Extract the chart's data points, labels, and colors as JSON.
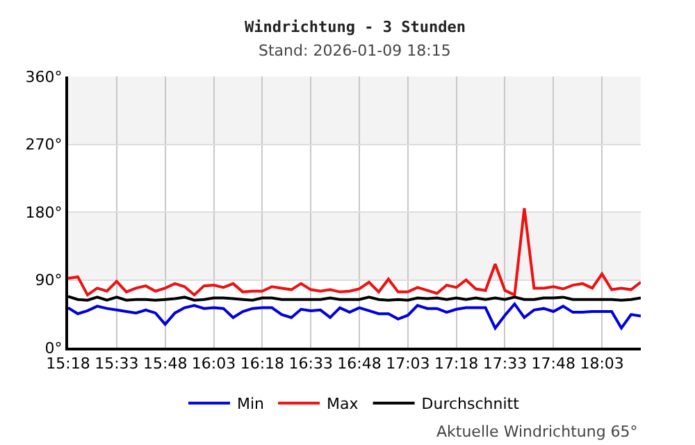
{
  "chart_data": {
    "type": "line",
    "title": "Windrichtung - 3 Stunden",
    "subtitle": "Stand: 2026-01-09 18:15",
    "x": [
      15.3,
      15.35,
      15.4,
      15.45,
      15.5,
      15.55,
      15.6,
      15.65,
      15.7,
      15.75,
      15.8,
      15.85,
      15.9,
      15.95,
      16.0,
      16.05,
      16.1,
      16.15,
      16.2,
      16.25,
      16.3,
      16.35,
      16.4,
      16.45,
      16.5,
      16.55,
      16.6,
      16.65,
      16.7,
      16.75,
      16.8,
      16.85,
      16.9,
      16.95,
      17.0,
      17.05,
      17.1,
      17.15,
      17.2,
      17.25,
      17.3,
      17.35,
      17.4,
      17.45,
      17.5,
      17.55,
      17.6,
      17.65,
      17.7,
      17.75,
      17.8,
      17.85,
      17.9,
      17.95,
      18.0,
      18.05,
      18.1,
      18.15,
      18.2,
      18.25
    ],
    "series": [
      {
        "name": "Min",
        "color": "#0000dd",
        "values": [
          53,
          45,
          49,
          55,
          52,
          50,
          48,
          46,
          50,
          46,
          31,
          46,
          53,
          56,
          52,
          53,
          52,
          40,
          48,
          52,
          53,
          53,
          44,
          40,
          51,
          49,
          50,
          40,
          53,
          47,
          53,
          49,
          45,
          45,
          38,
          43,
          56,
          52,
          52,
          47,
          51,
          53,
          53,
          53,
          26,
          43,
          58,
          40,
          50,
          52,
          48,
          55,
          47,
          47,
          48,
          48,
          48,
          26,
          44,
          42
        ]
      },
      {
        "name": "Max",
        "color": "#ee1111",
        "values": [
          92,
          94,
          70,
          79,
          75,
          88,
          74,
          79,
          82,
          75,
          79,
          85,
          81,
          70,
          82,
          83,
          80,
          85,
          74,
          75,
          75,
          81,
          79,
          77,
          85,
          77,
          75,
          77,
          74,
          75,
          78,
          87,
          74,
          91,
          74,
          74,
          80,
          76,
          72,
          83,
          80,
          90,
          78,
          76,
          111,
          76,
          70,
          185,
          79,
          79,
          81,
          78,
          83,
          85,
          79,
          98,
          77,
          79,
          77,
          87
        ]
      },
      {
        "name": "Durchschnitt",
        "color": "#000000",
        "values": [
          68,
          64,
          63,
          67,
          63,
          67,
          63,
          64,
          64,
          63,
          64,
          65,
          67,
          63,
          64,
          66,
          66,
          65,
          64,
          63,
          66,
          66,
          64,
          64,
          64,
          64,
          64,
          66,
          64,
          64,
          64,
          67,
          64,
          63,
          64,
          63,
          66,
          65,
          66,
          64,
          66,
          64,
          66,
          64,
          66,
          64,
          67,
          64,
          64,
          66,
          66,
          67,
          64,
          64,
          64,
          64,
          64,
          63,
          64,
          66
        ]
      }
    ],
    "xlim": [
      15.3,
      18.25
    ],
    "xticks": [
      {
        "value": 15.3,
        "label": "15:18"
      },
      {
        "value": 15.55,
        "label": "15:33"
      },
      {
        "value": 15.8,
        "label": "15:48"
      },
      {
        "value": 16.05,
        "label": "16:03"
      },
      {
        "value": 16.3,
        "label": "16:18"
      },
      {
        "value": 16.55,
        "label": "16:33"
      },
      {
        "value": 16.8,
        "label": "16:48"
      },
      {
        "value": 17.05,
        "label": "17:03"
      },
      {
        "value": 17.3,
        "label": "17:18"
      },
      {
        "value": 17.55,
        "label": "17:33"
      },
      {
        "value": 17.8,
        "label": "17:48"
      },
      {
        "value": 18.05,
        "label": "18:03"
      }
    ],
    "ylim": [
      0,
      360
    ],
    "yticks": [
      {
        "value": 0,
        "label": "0°"
      },
      {
        "value": 90,
        "label": "90°"
      },
      {
        "value": 180,
        "label": "180°"
      },
      {
        "value": 270,
        "label": "270°"
      },
      {
        "value": 360,
        "label": "360°"
      }
    ],
    "bands": [
      {
        "axis": "y",
        "from": 90,
        "to": 180,
        "color": "#f3f3f3"
      },
      {
        "axis": "y",
        "from": 270,
        "to": 360,
        "color": "#f3f3f3"
      }
    ],
    "annotations": [
      "Aktuelle Windrichtung 65°"
    ],
    "grid": true,
    "legend": "bottom",
    "marker": "none",
    "line_style": "solid"
  }
}
